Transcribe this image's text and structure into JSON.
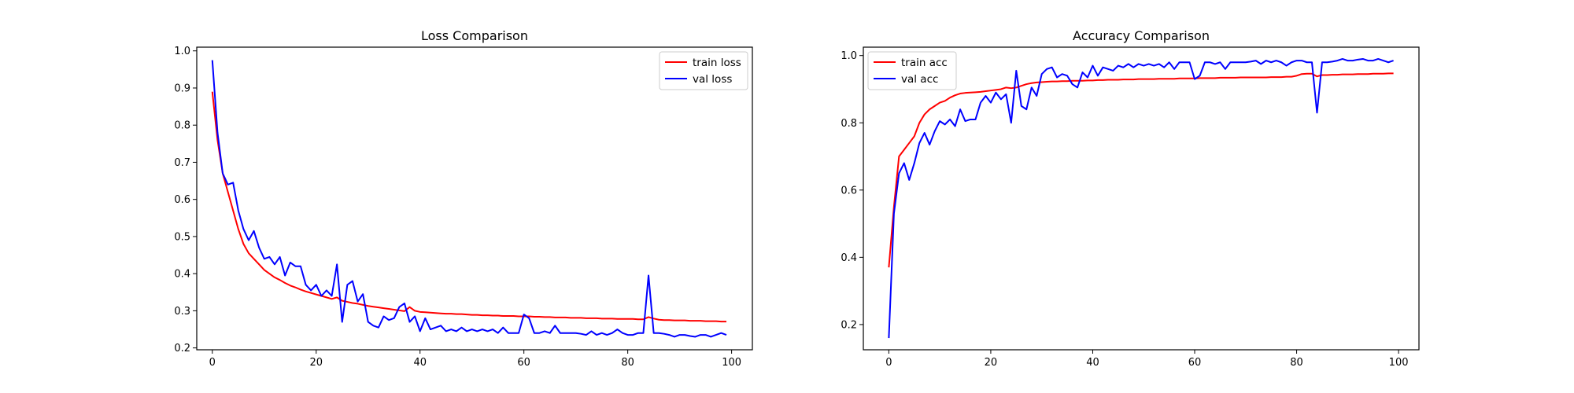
{
  "chart_data": [
    {
      "type": "line",
      "title": "Loss Comparison",
      "xlabel": "",
      "ylabel": "",
      "xlim": [
        -3,
        104
      ],
      "ylim": [
        0.195,
        1.01
      ],
      "xticks": [
        0,
        20,
        40,
        60,
        80,
        100
      ],
      "yticks": [
        0.2,
        0.3,
        0.4,
        0.5,
        0.6,
        0.7,
        0.8,
        0.9,
        1.0
      ],
      "ytick_labels": [
        "0.2",
        "0.3",
        "0.4",
        "0.5",
        "0.6",
        "0.7",
        "0.8",
        "0.9",
        "1.0"
      ],
      "grid": false,
      "legend": "upper-right",
      "series": [
        {
          "name": "train loss",
          "color": "#ff0000",
          "values": [
            0.89,
            0.76,
            0.67,
            0.62,
            0.57,
            0.52,
            0.48,
            0.455,
            0.44,
            0.425,
            0.41,
            0.4,
            0.39,
            0.383,
            0.375,
            0.368,
            0.363,
            0.357,
            0.352,
            0.348,
            0.344,
            0.34,
            0.336,
            0.332,
            0.336,
            0.327,
            0.324,
            0.321,
            0.319,
            0.316,
            0.313,
            0.311,
            0.309,
            0.307,
            0.305,
            0.303,
            0.301,
            0.299,
            0.31,
            0.3,
            0.297,
            0.296,
            0.295,
            0.294,
            0.293,
            0.292,
            0.292,
            0.291,
            0.291,
            0.29,
            0.289,
            0.289,
            0.288,
            0.288,
            0.287,
            0.287,
            0.286,
            0.286,
            0.286,
            0.285,
            0.285,
            0.285,
            0.284,
            0.284,
            0.283,
            0.283,
            0.282,
            0.282,
            0.282,
            0.281,
            0.281,
            0.281,
            0.28,
            0.28,
            0.28,
            0.279,
            0.279,
            0.279,
            0.278,
            0.278,
            0.278,
            0.278,
            0.277,
            0.277,
            0.283,
            0.279,
            0.276,
            0.275,
            0.275,
            0.274,
            0.274,
            0.274,
            0.273,
            0.273,
            0.273,
            0.272,
            0.272,
            0.272,
            0.271,
            0.271
          ]
        },
        {
          "name": "val loss",
          "color": "#0000ff",
          "values": [
            0.975,
            0.78,
            0.67,
            0.64,
            0.645,
            0.57,
            0.52,
            0.49,
            0.515,
            0.47,
            0.44,
            0.445,
            0.425,
            0.445,
            0.395,
            0.43,
            0.42,
            0.42,
            0.37,
            0.355,
            0.37,
            0.34,
            0.355,
            0.34,
            0.425,
            0.27,
            0.37,
            0.38,
            0.325,
            0.345,
            0.27,
            0.26,
            0.255,
            0.285,
            0.275,
            0.28,
            0.31,
            0.32,
            0.27,
            0.285,
            0.245,
            0.28,
            0.25,
            0.255,
            0.26,
            0.245,
            0.25,
            0.245,
            0.255,
            0.245,
            0.25,
            0.245,
            0.25,
            0.245,
            0.25,
            0.24,
            0.255,
            0.24,
            0.24,
            0.24,
            0.29,
            0.28,
            0.24,
            0.24,
            0.245,
            0.24,
            0.26,
            0.24,
            0.24,
            0.24,
            0.24,
            0.238,
            0.235,
            0.245,
            0.235,
            0.24,
            0.235,
            0.24,
            0.25,
            0.24,
            0.235,
            0.235,
            0.24,
            0.24,
            0.395,
            0.24,
            0.24,
            0.238,
            0.235,
            0.23,
            0.235,
            0.235,
            0.232,
            0.23,
            0.235,
            0.235,
            0.23,
            0.235,
            0.24,
            0.235
          ]
        }
      ]
    },
    {
      "type": "line",
      "title": "Accuracy Comparison",
      "xlabel": "",
      "ylabel": "",
      "xlim": [
        -5,
        104
      ],
      "ylim": [
        0.125,
        1.025
      ],
      "xticks": [
        0,
        20,
        40,
        60,
        80,
        100
      ],
      "yticks": [
        0.2,
        0.4,
        0.6,
        0.8,
        1.0
      ],
      "ytick_labels": [
        "0.2",
        "0.4",
        "0.6",
        "0.8",
        "1.0"
      ],
      "grid": false,
      "legend": "upper-left",
      "series": [
        {
          "name": "train acc",
          "color": "#ff0000",
          "values": [
            0.37,
            0.55,
            0.7,
            0.72,
            0.74,
            0.76,
            0.8,
            0.825,
            0.84,
            0.85,
            0.86,
            0.865,
            0.875,
            0.882,
            0.887,
            0.889,
            0.89,
            0.891,
            0.892,
            0.894,
            0.896,
            0.898,
            0.9,
            0.905,
            0.903,
            0.905,
            0.91,
            0.915,
            0.918,
            0.92,
            0.921,
            0.922,
            0.923,
            0.923,
            0.924,
            0.924,
            0.925,
            0.925,
            0.925,
            0.926,
            0.926,
            0.927,
            0.927,
            0.928,
            0.928,
            0.928,
            0.929,
            0.929,
            0.929,
            0.93,
            0.93,
            0.93,
            0.93,
            0.931,
            0.931,
            0.931,
            0.931,
            0.932,
            0.932,
            0.932,
            0.932,
            0.933,
            0.933,
            0.933,
            0.933,
            0.934,
            0.934,
            0.934,
            0.934,
            0.935,
            0.935,
            0.935,
            0.935,
            0.935,
            0.935,
            0.936,
            0.936,
            0.936,
            0.937,
            0.937,
            0.94,
            0.945,
            0.946,
            0.946,
            0.938,
            0.942,
            0.942,
            0.943,
            0.943,
            0.944,
            0.944,
            0.944,
            0.945,
            0.945,
            0.945,
            0.946,
            0.946,
            0.946,
            0.947,
            0.947
          ]
        },
        {
          "name": "val acc",
          "color": "#0000ff",
          "values": [
            0.16,
            0.53,
            0.65,
            0.68,
            0.63,
            0.68,
            0.74,
            0.77,
            0.735,
            0.775,
            0.805,
            0.795,
            0.81,
            0.79,
            0.84,
            0.805,
            0.81,
            0.81,
            0.86,
            0.88,
            0.86,
            0.89,
            0.87,
            0.885,
            0.8,
            0.955,
            0.85,
            0.84,
            0.905,
            0.88,
            0.945,
            0.96,
            0.965,
            0.935,
            0.945,
            0.94,
            0.915,
            0.905,
            0.95,
            0.935,
            0.97,
            0.94,
            0.965,
            0.96,
            0.955,
            0.97,
            0.965,
            0.975,
            0.965,
            0.975,
            0.97,
            0.975,
            0.97,
            0.975,
            0.965,
            0.98,
            0.96,
            0.98,
            0.98,
            0.98,
            0.93,
            0.94,
            0.98,
            0.98,
            0.975,
            0.98,
            0.96,
            0.98,
            0.98,
            0.98,
            0.98,
            0.982,
            0.985,
            0.975,
            0.985,
            0.98,
            0.985,
            0.98,
            0.97,
            0.98,
            0.985,
            0.985,
            0.98,
            0.98,
            0.83,
            0.98,
            0.98,
            0.982,
            0.985,
            0.99,
            0.985,
            0.985,
            0.988,
            0.99,
            0.985,
            0.985,
            0.99,
            0.985,
            0.98,
            0.985
          ]
        }
      ]
    }
  ]
}
